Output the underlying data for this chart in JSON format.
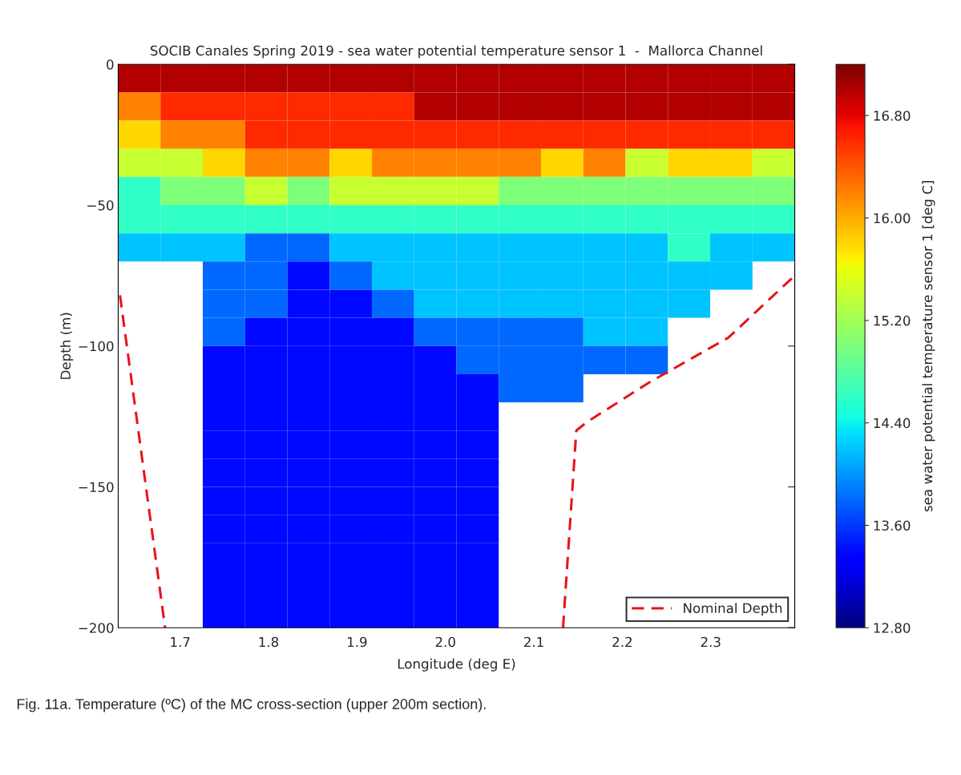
{
  "chart_data": {
    "type": "heatmap",
    "title": "SOCIB Canales Spring 2019 - sea water potential temperature sensor 1  -  Mallorca Channel",
    "xlabel": "Longitude (deg E)",
    "ylabel": "Depth (m)",
    "clabel": "sea water potential temperature sensor 1 [deg C]",
    "xlim": [
      1.63,
      2.395
    ],
    "ylim": [
      -200,
      0
    ],
    "xticks": [
      1.7,
      1.8,
      1.9,
      {
        "value": 2.0,
        "label": "2.0"
      },
      2.1,
      2.2,
      2.3
    ],
    "yticks": [
      0,
      {
        "value": -50,
        "label": "−50"
      },
      {
        "value": -100,
        "label": "−100"
      },
      {
        "value": -150,
        "label": "−150"
      },
      {
        "value": -200,
        "label": "−200"
      }
    ],
    "clim": [
      12.8,
      17.2
    ],
    "cticks": [
      {
        "value": 12.8,
        "label": "12.80"
      },
      {
        "value": 13.6,
        "label": "13.60"
      },
      {
        "value": 14.4,
        "label": "14.40"
      },
      {
        "value": 15.2,
        "label": "15.20"
      },
      {
        "value": 16.0,
        "label": "16.00"
      },
      {
        "value": 16.8,
        "label": "16.80"
      }
    ],
    "cells": [
      [
        17.0,
        17.0,
        17.0,
        17.0,
        17.0,
        17.0,
        17.0,
        17.0,
        17.0,
        17.0,
        17.0,
        17.0,
        17.0,
        17.0,
        17.0,
        17.0
      ],
      [
        16.2,
        16.6,
        16.6,
        16.6,
        16.6,
        16.6,
        16.6,
        17.0,
        17.0,
        17.0,
        17.0,
        17.0,
        17.0,
        17.0,
        17.0,
        17.0
      ],
      [
        15.8,
        16.2,
        16.2,
        16.6,
        16.6,
        16.6,
        16.6,
        16.6,
        16.6,
        16.6,
        16.6,
        16.6,
        16.6,
        16.6,
        16.6,
        16.6
      ],
      [
        15.4,
        15.4,
        15.8,
        16.2,
        16.2,
        15.8,
        16.2,
        16.2,
        16.2,
        16.2,
        15.8,
        16.2,
        15.4,
        15.8,
        15.8,
        15.4
      ],
      [
        14.6,
        15.0,
        15.0,
        15.4,
        15.0,
        15.4,
        15.4,
        15.4,
        15.4,
        15.0,
        15.0,
        15.0,
        15.0,
        15.0,
        15.0,
        15.0
      ],
      [
        14.6,
        14.6,
        14.6,
        14.6,
        14.6,
        14.6,
        14.6,
        14.6,
        14.6,
        14.6,
        14.6,
        14.6,
        14.6,
        14.6,
        14.6,
        14.6
      ],
      [
        14.2,
        14.2,
        14.2,
        13.8,
        13.8,
        14.2,
        14.2,
        14.2,
        14.2,
        14.2,
        14.2,
        14.2,
        14.2,
        14.6,
        14.2,
        14.2
      ],
      [
        null,
        null,
        13.8,
        13.8,
        13.4,
        13.8,
        14.2,
        14.2,
        14.2,
        14.2,
        14.2,
        14.2,
        14.2,
        14.2,
        14.2,
        null
      ],
      [
        null,
        null,
        13.8,
        13.8,
        13.4,
        13.4,
        13.8,
        14.2,
        14.2,
        14.2,
        14.2,
        14.2,
        14.2,
        14.2,
        null,
        null
      ],
      [
        null,
        null,
        13.8,
        13.4,
        13.4,
        13.4,
        13.4,
        13.8,
        13.8,
        13.8,
        13.8,
        14.2,
        14.2,
        null,
        null,
        null
      ],
      [
        null,
        null,
        13.4,
        13.4,
        13.4,
        13.4,
        13.4,
        13.4,
        13.8,
        13.8,
        13.8,
        13.8,
        13.8,
        null,
        null,
        null
      ],
      [
        null,
        null,
        13.4,
        13.4,
        13.4,
        13.4,
        13.4,
        13.4,
        13.4,
        13.8,
        13.8,
        null,
        null,
        null,
        null,
        null
      ],
      [
        null,
        null,
        13.4,
        13.4,
        13.4,
        13.4,
        13.4,
        13.4,
        13.4,
        null,
        null,
        null,
        null,
        null,
        null,
        null
      ],
      [
        null,
        null,
        13.4,
        13.4,
        13.4,
        13.4,
        13.4,
        13.4,
        13.4,
        null,
        null,
        null,
        null,
        null,
        null,
        null
      ],
      [
        null,
        null,
        13.4,
        13.4,
        13.4,
        13.4,
        13.4,
        13.4,
        13.4,
        null,
        null,
        null,
        null,
        null,
        null,
        null
      ],
      [
        null,
        null,
        13.4,
        13.4,
        13.4,
        13.4,
        13.4,
        13.4,
        13.4,
        null,
        null,
        null,
        null,
        null,
        null,
        null
      ],
      [
        null,
        null,
        13.4,
        13.4,
        13.4,
        13.4,
        13.4,
        13.4,
        13.4,
        null,
        null,
        null,
        null,
        null,
        null,
        null
      ],
      [
        null,
        null,
        13.4,
        13.4,
        13.4,
        13.4,
        13.4,
        13.4,
        13.4,
        null,
        null,
        null,
        null,
        null,
        null,
        null
      ],
      [
        null,
        null,
        13.4,
        13.4,
        13.4,
        13.4,
        13.4,
        13.4,
        13.4,
        null,
        null,
        null,
        null,
        null,
        null,
        null
      ],
      [
        null,
        null,
        13.4,
        13.4,
        13.4,
        13.4,
        13.4,
        13.4,
        13.4,
        null,
        null,
        null,
        null,
        null,
        null,
        null
      ]
    ],
    "series": [
      {
        "type": "line",
        "name": "Nominal Depth",
        "color": "#e8141b",
        "line_style": "dashed",
        "x": [
          1.632,
          1.683
        ],
        "values": [
          -82,
          -200
        ]
      },
      {
        "type": "line",
        "color": "#e8141b",
        "line_style": "dashed",
        "x": [
          2.133,
          2.148,
          2.16,
          2.23,
          2.32,
          2.395
        ],
        "values": [
          -200,
          -130,
          -127,
          -113,
          -97,
          -75
        ]
      }
    ],
    "legend": "bottom right",
    "annotations": [
      "Fig. 11a. Temperature (ºC) of the MC cross-section (upper 200m section)."
    ]
  }
}
